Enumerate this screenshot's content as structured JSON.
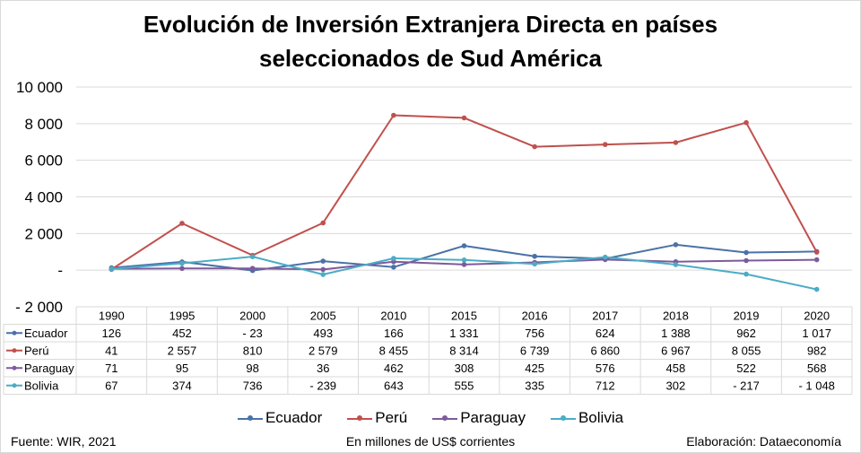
{
  "chart_data": {
    "type": "line",
    "title": "Evolución de Inversión Extranjera Directa en países seleccionados de Sud América",
    "title_lines": [
      "Evolución de Inversión Extranjera Directa en países",
      "seleccionados de Sud América"
    ],
    "categories": [
      "1990",
      "1995",
      "2000",
      "2005",
      "2010",
      "2015",
      "2016",
      "2017",
      "2018",
      "2019",
      "2020"
    ],
    "ylim": [
      -2000,
      10000
    ],
    "yticks": [
      10000,
      8000,
      6000,
      4000,
      2000,
      0,
      -2000
    ],
    "ytick_labels": [
      "10 000",
      "8 000",
      "6 000",
      "4 000",
      "2 000",
      "-",
      "- 2 000"
    ],
    "grid": true,
    "legend_position": "bottom",
    "series": [
      {
        "name": "Ecuador",
        "color": "#4a72a8",
        "values": [
          126,
          452,
          -23,
          493,
          166,
          1331,
          756,
          624,
          1388,
          962,
          1017
        ],
        "labels": [
          "126",
          "452",
          "-  23",
          "493",
          "166",
          "1 331",
          "756",
          "624",
          "1 388",
          "962",
          "1 017"
        ]
      },
      {
        "name": "Perú",
        "color": "#c0504d",
        "values": [
          41,
          2557,
          810,
          2579,
          8455,
          8314,
          6739,
          6860,
          6967,
          8055,
          982
        ],
        "labels": [
          "41",
          "2 557",
          "810",
          "2 579",
          "8 455",
          "8 314",
          "6 739",
          "6 860",
          "6 967",
          "8 055",
          "982"
        ]
      },
      {
        "name": "Paraguay",
        "color": "#7e5a9b",
        "values": [
          71,
          95,
          98,
          36,
          462,
          308,
          425,
          576,
          458,
          522,
          568
        ],
        "labels": [
          "71",
          "95",
          "98",
          "36",
          "462",
          "308",
          "425",
          "576",
          "458",
          "522",
          "568"
        ]
      },
      {
        "name": "Bolivia",
        "color": "#4bacc6",
        "values": [
          67,
          374,
          736,
          -239,
          643,
          555,
          335,
          712,
          302,
          -217,
          -1048
        ],
        "labels": [
          "67",
          "374",
          "736",
          "-  239",
          "643",
          "555",
          "335",
          "712",
          "302",
          "-  217",
          "- 1 048"
        ]
      }
    ]
  },
  "footer": {
    "source": "Fuente: WIR, 2021",
    "units": "En millones de US$ corrientes",
    "credit": "Elaboración: Dataeconomía"
  }
}
